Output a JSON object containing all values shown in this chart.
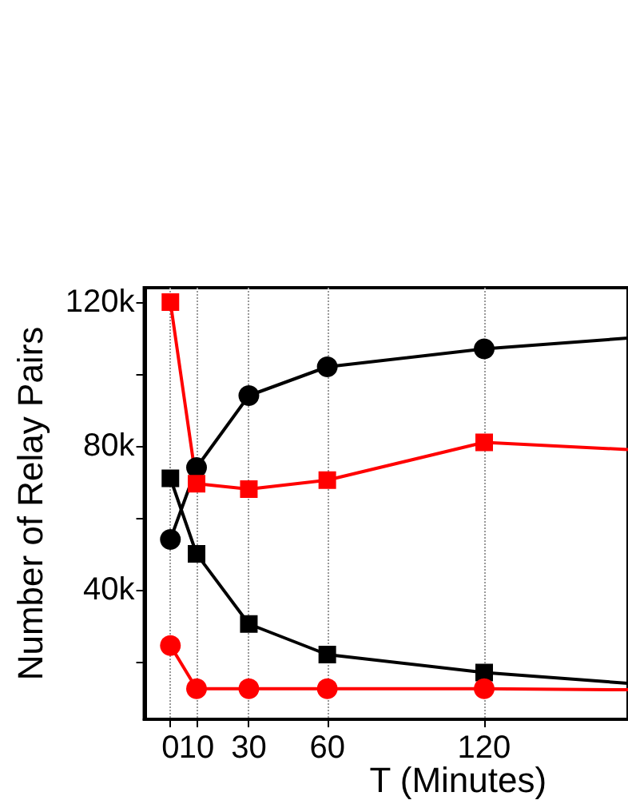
{
  "chart_data": {
    "type": "line",
    "xlabel": "T (Minutes)",
    "ylabel": "Number of Relay Pairs",
    "x": [
      0,
      10,
      30,
      60,
      120,
      175
    ],
    "series": [
      {
        "color": "#000000",
        "marker": "circle",
        "values": [
          54000,
          74000,
          94000,
          102000,
          107000,
          110000
        ]
      },
      {
        "color": "#ff0000",
        "marker": "square",
        "values": [
          120000,
          69500,
          68000,
          70500,
          81000,
          79000
        ]
      },
      {
        "color": "#000000",
        "marker": "square",
        "values": [
          71000,
          50000,
          30500,
          22000,
          17000,
          14000
        ]
      },
      {
        "color": "#ff0000",
        "marker": "circle",
        "values": [
          24500,
          12500,
          12500,
          12500,
          12500,
          12200
        ]
      }
    ],
    "xlim": [
      -10,
      175
    ],
    "xticks": [
      0,
      10,
      30,
      60,
      120
    ],
    "ylim": [
      4000,
      124000
    ],
    "yticks": [
      {
        "value": 20000,
        "label": null
      },
      {
        "value": 40000,
        "label": "40k"
      },
      {
        "value": 60000,
        "label": null
      },
      {
        "value": 80000,
        "label": "80k"
      },
      {
        "value": 100000,
        "label": null
      },
      {
        "value": 120000,
        "label": "120k"
      }
    ],
    "grid": "x",
    "line_style": "solid"
  }
}
